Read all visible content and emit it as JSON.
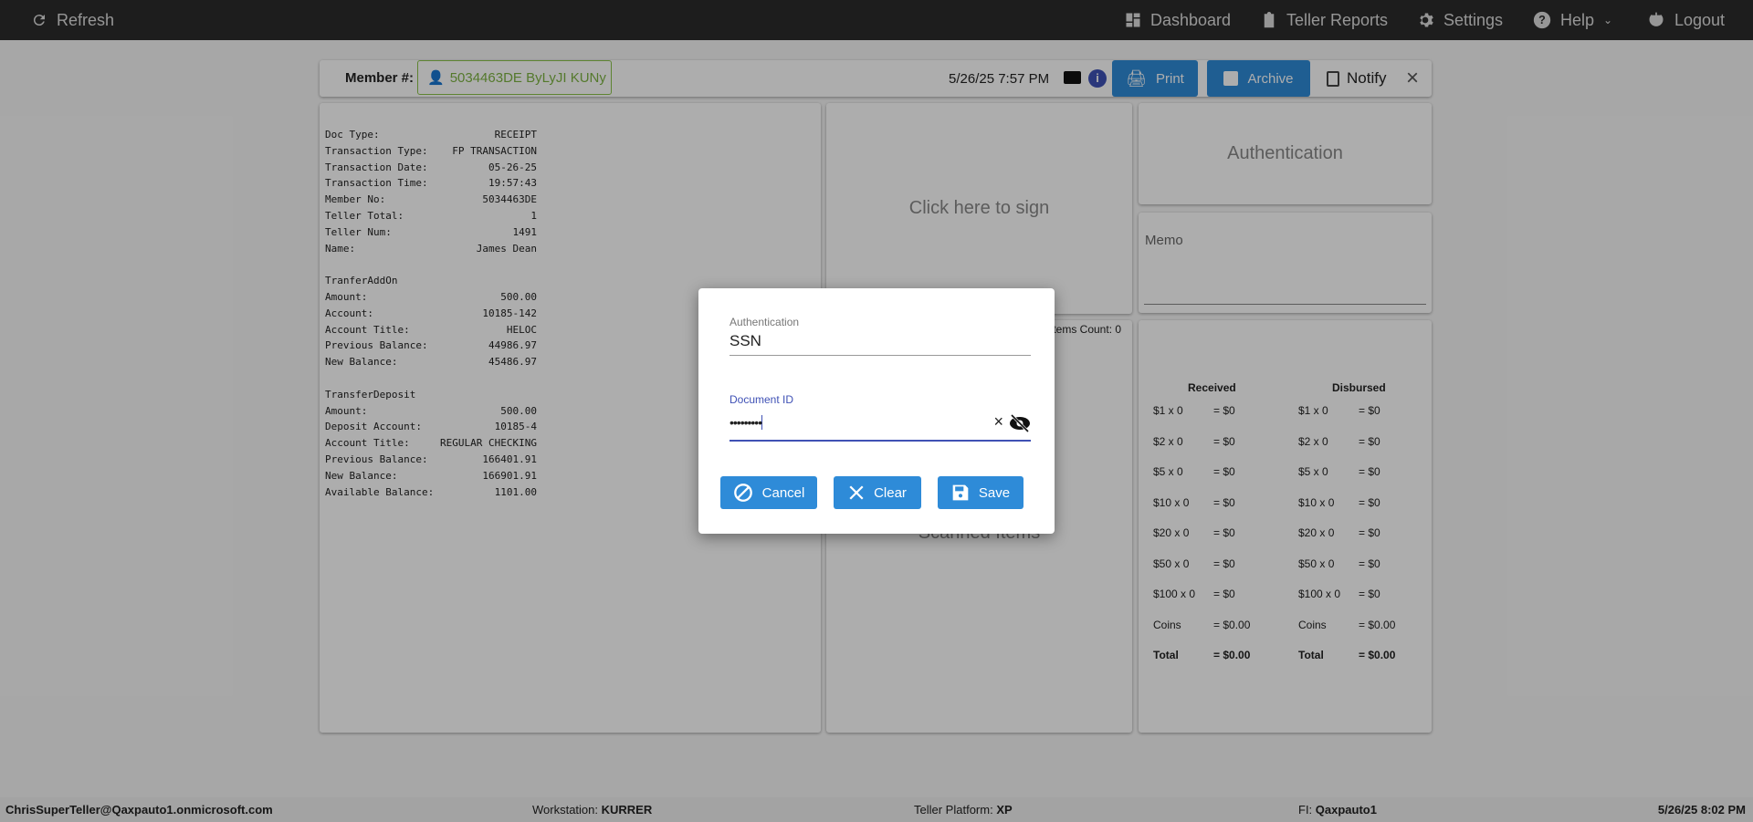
{
  "topbar": {
    "refresh": "Refresh",
    "dashboard": "Dashboard",
    "teller_reports": "Teller Reports",
    "settings": "Settings",
    "help": "Help",
    "logout": "Logout"
  },
  "header": {
    "member_label": "Member #:",
    "member_value": "5034463DE ByLyJI KUNy",
    "datetime": "5/26/25 7:57 PM",
    "print": "Print",
    "archive": "Archive",
    "notify": "Notify"
  },
  "receipt": [
    [
      "Doc Type:",
      "RECEIPT"
    ],
    [
      "Transaction Type:",
      "FP TRANSACTION"
    ],
    [
      "Transaction Date:",
      "05-26-25"
    ],
    [
      "Transaction Time:",
      "19:57:43"
    ],
    [
      "Member No:",
      "5034463DE"
    ],
    [
      "Teller Total:",
      "1"
    ],
    [
      "Teller Num:",
      "1491"
    ],
    [
      "Name:",
      "James Dean"
    ],
    [],
    [
      "TranferAddOn",
      ""
    ],
    [
      "Amount:",
      "500.00"
    ],
    [
      "Account:",
      "10185-142"
    ],
    [
      "Account Title:",
      "HELOC"
    ],
    [
      "Previous Balance:",
      "44986.97"
    ],
    [
      "New Balance:",
      "45486.97"
    ],
    [],
    [
      "TransferDeposit",
      ""
    ],
    [
      "Amount:",
      "500.00"
    ],
    [
      "Deposit Account:",
      "10185-4"
    ],
    [
      "Account Title:",
      "REGULAR CHECKING"
    ],
    [
      "Previous Balance:",
      "166401.91"
    ],
    [
      "New Balance:",
      "166901.91"
    ],
    [
      "Available Balance:",
      "1101.00"
    ]
  ],
  "sign": "Click here to sign",
  "items_count": "Items Count: 0",
  "scanned": "Scanned Items",
  "auth_panel": "Authentication",
  "memo": "Memo",
  "cash": {
    "received": "Received",
    "disbursed": "Disbursed",
    "rows": [
      [
        "$1 x 0",
        "= $0"
      ],
      [
        "$2 x 0",
        "= $0"
      ],
      [
        "$5 x 0",
        "= $0"
      ],
      [
        "$10 x 0",
        "= $0"
      ],
      [
        "$20 x 0",
        "= $0"
      ],
      [
        "$50 x 0",
        "= $0"
      ],
      [
        "$100 x 0",
        "= $0"
      ],
      [
        "Coins",
        "= $0.00"
      ],
      [
        "Total",
        "= $0.00"
      ]
    ]
  },
  "dialog": {
    "auth_label": "Authentication",
    "auth_value": "SSN",
    "doc_label": "Document ID",
    "doc_value": "•••••••••",
    "cancel": "Cancel",
    "clear": "Clear",
    "save": "Save"
  },
  "footer": {
    "user": "ChrisSuperTeller@Qaxpauto1.onmicrosoft.com",
    "ws_label": "Workstation: ",
    "ws": "KURRER",
    "tp_label": "Teller Platform: ",
    "tp": "XP",
    "fi_label": "FI: ",
    "fi": "Qaxpauto1",
    "datetime": "5/26/25 8:02 PM"
  },
  "colors": {
    "accent": "#2e8bd8",
    "member": "#7cb342",
    "focus": "#3f51b5"
  }
}
